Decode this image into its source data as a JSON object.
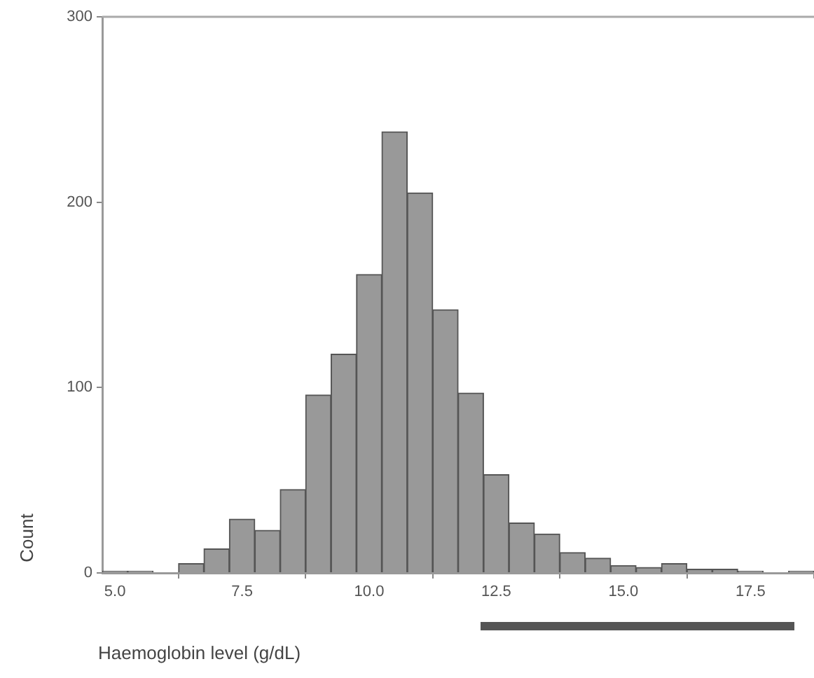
{
  "chart_data": {
    "type": "histogram",
    "xlabel": "Haemoglobin level (g/dL)",
    "ylabel": "Count",
    "bins": [
      4.75,
      5.25,
      5.75,
      6.25,
      6.75,
      7.25,
      7.75,
      8.25,
      8.75,
      9.25,
      9.75,
      10.25,
      10.75,
      11.25,
      11.75,
      12.25,
      12.75,
      13.25,
      13.75,
      14.25,
      14.75,
      15.25,
      15.75,
      16.25,
      16.75,
      17.25,
      17.75,
      18.25,
      18.75
    ],
    "values": [
      1,
      1,
      0,
      5,
      13,
      29,
      23,
      45,
      96,
      118,
      161,
      238,
      205,
      142,
      97,
      53,
      27,
      21,
      11,
      8,
      4,
      3,
      5,
      2,
      2,
      1,
      0,
      1
    ],
    "color": "#999999",
    "xlim": [
      4.75,
      18.75
    ],
    "xticks": [
      {
        "value": 5,
        "label": "5.0"
      },
      7.5,
      {
        "value": 10,
        "label": "10.0"
      },
      12.5,
      {
        "value": 15,
        "label": "15.0"
      },
      17.5
    ],
    "ylim": [
      0,
      300
    ],
    "yticks": [
      0,
      100,
      200,
      300
    ],
    "grid": false,
    "legend": false
  }
}
